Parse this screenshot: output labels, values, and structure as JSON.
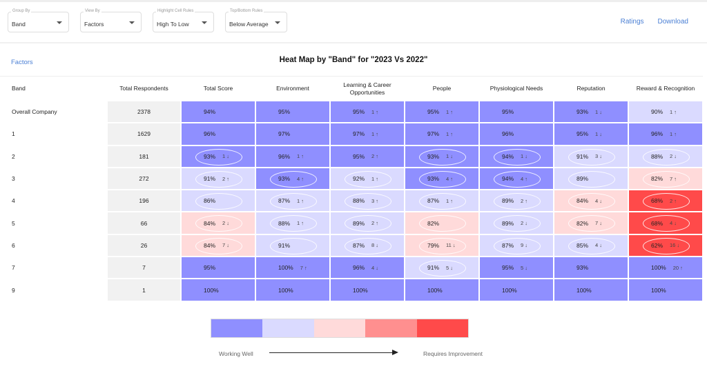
{
  "filters": [
    {
      "label": "Group By",
      "value": "Band"
    },
    {
      "label": "View By",
      "value": "Factors"
    },
    {
      "label": "Highlight Cell Rules",
      "value": "High To Low"
    },
    {
      "label": "Top/Bottom Rules",
      "value": "Below Average"
    }
  ],
  "links": {
    "ratings": "Ratings",
    "download": "Download"
  },
  "factors_link": "Factors",
  "title": "Heat Map by \"Band\" for \"2023 Vs 2022\"",
  "colors": {
    "level0": "#8f8fff",
    "level1": "#dadaff",
    "level2": "#ffdada",
    "level3": "#ff8f8f",
    "level4": "#ff4a4a"
  },
  "table": {
    "headers": [
      "Band",
      "Total Respondents",
      "Total Score",
      "Environment",
      "Learning & Career Opportunities",
      "People",
      "Physiological Needs",
      "Reputation",
      "Reward & Recognition"
    ],
    "rows": [
      {
        "band": "Overall Company",
        "respondents": "2378",
        "cells": [
          [
            "94%",
            "",
            0,
            0
          ],
          [
            "95%",
            "",
            0,
            0
          ],
          [
            "95%",
            "1 ↑",
            0,
            0
          ],
          [
            "95%",
            "1 ↑",
            0,
            0
          ],
          [
            "95%",
            "",
            0,
            0
          ],
          [
            "93%",
            "1 ↓",
            0,
            0
          ],
          [
            "90%",
            "1 ↑",
            1,
            0
          ]
        ]
      },
      {
        "band": "1",
        "respondents": "1629",
        "cells": [
          [
            "96%",
            "",
            0,
            0
          ],
          [
            "97%",
            "",
            0,
            0
          ],
          [
            "97%",
            "1 ↑",
            0,
            0
          ],
          [
            "97%",
            "1 ↑",
            0,
            0
          ],
          [
            "96%",
            "",
            0,
            0
          ],
          [
            "95%",
            "1 ↓",
            0,
            0
          ],
          [
            "96%",
            "1 ↑",
            0,
            0
          ]
        ]
      },
      {
        "band": "2",
        "respondents": "181",
        "cells": [
          [
            "93%",
            "1 ↓",
            0,
            1
          ],
          [
            "96%",
            "1 ↑",
            0,
            0
          ],
          [
            "95%",
            "2 ↑",
            0,
            0
          ],
          [
            "93%",
            "1 ↓",
            0,
            1
          ],
          [
            "94%",
            "1 ↓",
            0,
            1
          ],
          [
            "91%",
            "3 ↓",
            1,
            1
          ],
          [
            "88%",
            "2 ↓",
            1,
            1
          ]
        ]
      },
      {
        "band": "3",
        "respondents": "272",
        "cells": [
          [
            "91%",
            "2 ↑",
            1,
            1
          ],
          [
            "93%",
            "4 ↑",
            0,
            1
          ],
          [
            "92%",
            "1 ↑",
            1,
            1
          ],
          [
            "93%",
            "4 ↑",
            0,
            1
          ],
          [
            "94%",
            "4 ↑",
            0,
            1
          ],
          [
            "89%",
            "",
            1,
            1
          ],
          [
            "82%",
            "7 ↑",
            2,
            1
          ]
        ]
      },
      {
        "band": "4",
        "respondents": "196",
        "cells": [
          [
            "86%",
            "",
            1,
            1
          ],
          [
            "87%",
            "1 ↑",
            1,
            1
          ],
          [
            "88%",
            "3 ↑",
            1,
            1
          ],
          [
            "87%",
            "1 ↑",
            1,
            1
          ],
          [
            "89%",
            "2 ↑",
            1,
            1
          ],
          [
            "84%",
            "4 ↓",
            2,
            1
          ],
          [
            "68%",
            "2 ↑",
            4,
            1
          ]
        ]
      },
      {
        "band": "5",
        "respondents": "66",
        "cells": [
          [
            "84%",
            "2 ↓",
            2,
            1
          ],
          [
            "88%",
            "1 ↑",
            1,
            1
          ],
          [
            "89%",
            "2 ↑",
            1,
            1
          ],
          [
            "82%",
            "",
            2,
            1
          ],
          [
            "89%",
            "2 ↓",
            1,
            1
          ],
          [
            "82%",
            "7 ↓",
            2,
            1
          ],
          [
            "68%",
            "4 ↓",
            4,
            1
          ]
        ]
      },
      {
        "band": "6",
        "respondents": "26",
        "cells": [
          [
            "84%",
            "7 ↓",
            2,
            1
          ],
          [
            "91%",
            "",
            1,
            1
          ],
          [
            "87%",
            "8 ↓",
            1,
            1
          ],
          [
            "79%",
            "11 ↓",
            2,
            1
          ],
          [
            "87%",
            "9 ↓",
            1,
            1
          ],
          [
            "85%",
            "4 ↓",
            1,
            1
          ],
          [
            "62%",
            "16 ↓",
            4,
            1
          ]
        ]
      },
      {
        "band": "7",
        "respondents": "7",
        "cells": [
          [
            "95%",
            "",
            0,
            0
          ],
          [
            "100%",
            "7 ↑",
            0,
            0
          ],
          [
            "96%",
            "4 ↓",
            0,
            0
          ],
          [
            "91%",
            "5 ↓",
            1,
            1
          ],
          [
            "95%",
            "5 ↓",
            0,
            0
          ],
          [
            "93%",
            "",
            0,
            0
          ],
          [
            "100%",
            "20 ↑",
            0,
            0
          ]
        ]
      },
      {
        "band": "9",
        "respondents": "1",
        "cells": [
          [
            "100%",
            "",
            0,
            0
          ],
          [
            "100%",
            "",
            0,
            0
          ],
          [
            "100%",
            "",
            0,
            0
          ],
          [
            "100%",
            "",
            0,
            0
          ],
          [
            "100%",
            "",
            0,
            0
          ],
          [
            "100%",
            "",
            0,
            0
          ],
          [
            "100%",
            "",
            0,
            0
          ]
        ]
      }
    ]
  },
  "legend": {
    "left": "Working Well",
    "right": "Requires Improvement"
  }
}
